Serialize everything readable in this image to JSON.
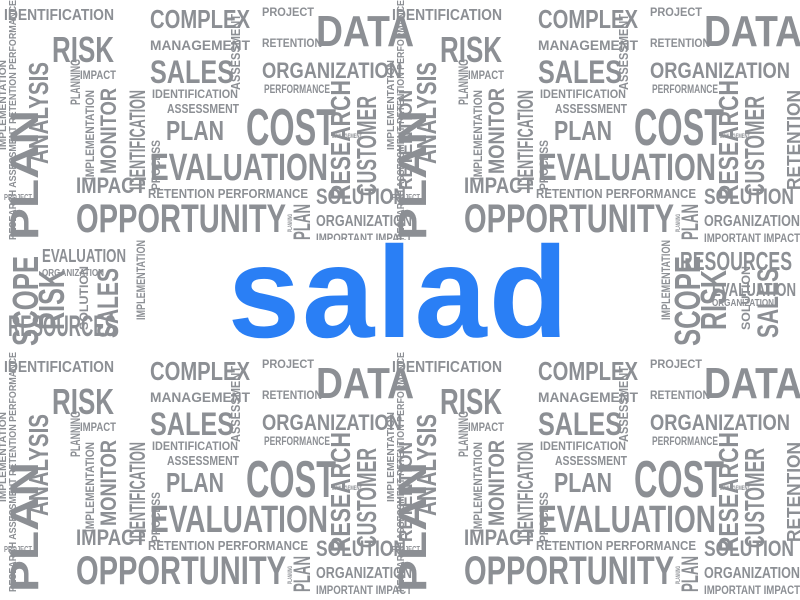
{
  "center_word": "salad",
  "colors": {
    "background": "#ffffff",
    "cloud_words": "#8c8f94",
    "center_word": "#2a7ff5"
  },
  "tile_words": [
    "IDENTIFICATION",
    "COMPLEX",
    "PROJECT",
    "DATA",
    "RISK",
    "MANAGEMENT",
    "RETENTION",
    "SALES",
    "ORGANIZATION",
    "IMPACT",
    "ASSESSMENT",
    "PERFORMANCE",
    "ANALYSIS",
    "PLANNING",
    "IDENTIFICATION",
    "ASSESSMENT",
    "COST",
    "PLAN",
    "PROCESS",
    "IMPLEMENTATION",
    "RESEARCH",
    "CUSTOMER",
    "MONITOR",
    "IDENTIFICATION",
    "EVALUATION",
    "RETENTION",
    "IMPACT",
    "MANAGEMENT",
    "RETENTION PERFORMANCE",
    "SOLUTION",
    "PROJECT",
    "OPPORTUNITY",
    "PLANNING",
    "PLAN",
    "ORGANIZATION",
    "IMPORTANT IMPACT",
    "RESEARCH ASSESSMENT RETENTION PERFORMANCE",
    "PLAN",
    "IMPLEMENTATION"
  ],
  "middle_words": [
    "SCOPE",
    "RISK",
    "SOLUTION",
    "SALES",
    "EVALUATION",
    "ORGANIZATION",
    "RESOURCES",
    "IMPLEMENTATION",
    "RESOURCES",
    "EVALUATION",
    "ORGANIZATION",
    "SCOPE",
    "RISK",
    "SOLUTION",
    "SALES",
    "IMPLEMENTATION"
  ]
}
